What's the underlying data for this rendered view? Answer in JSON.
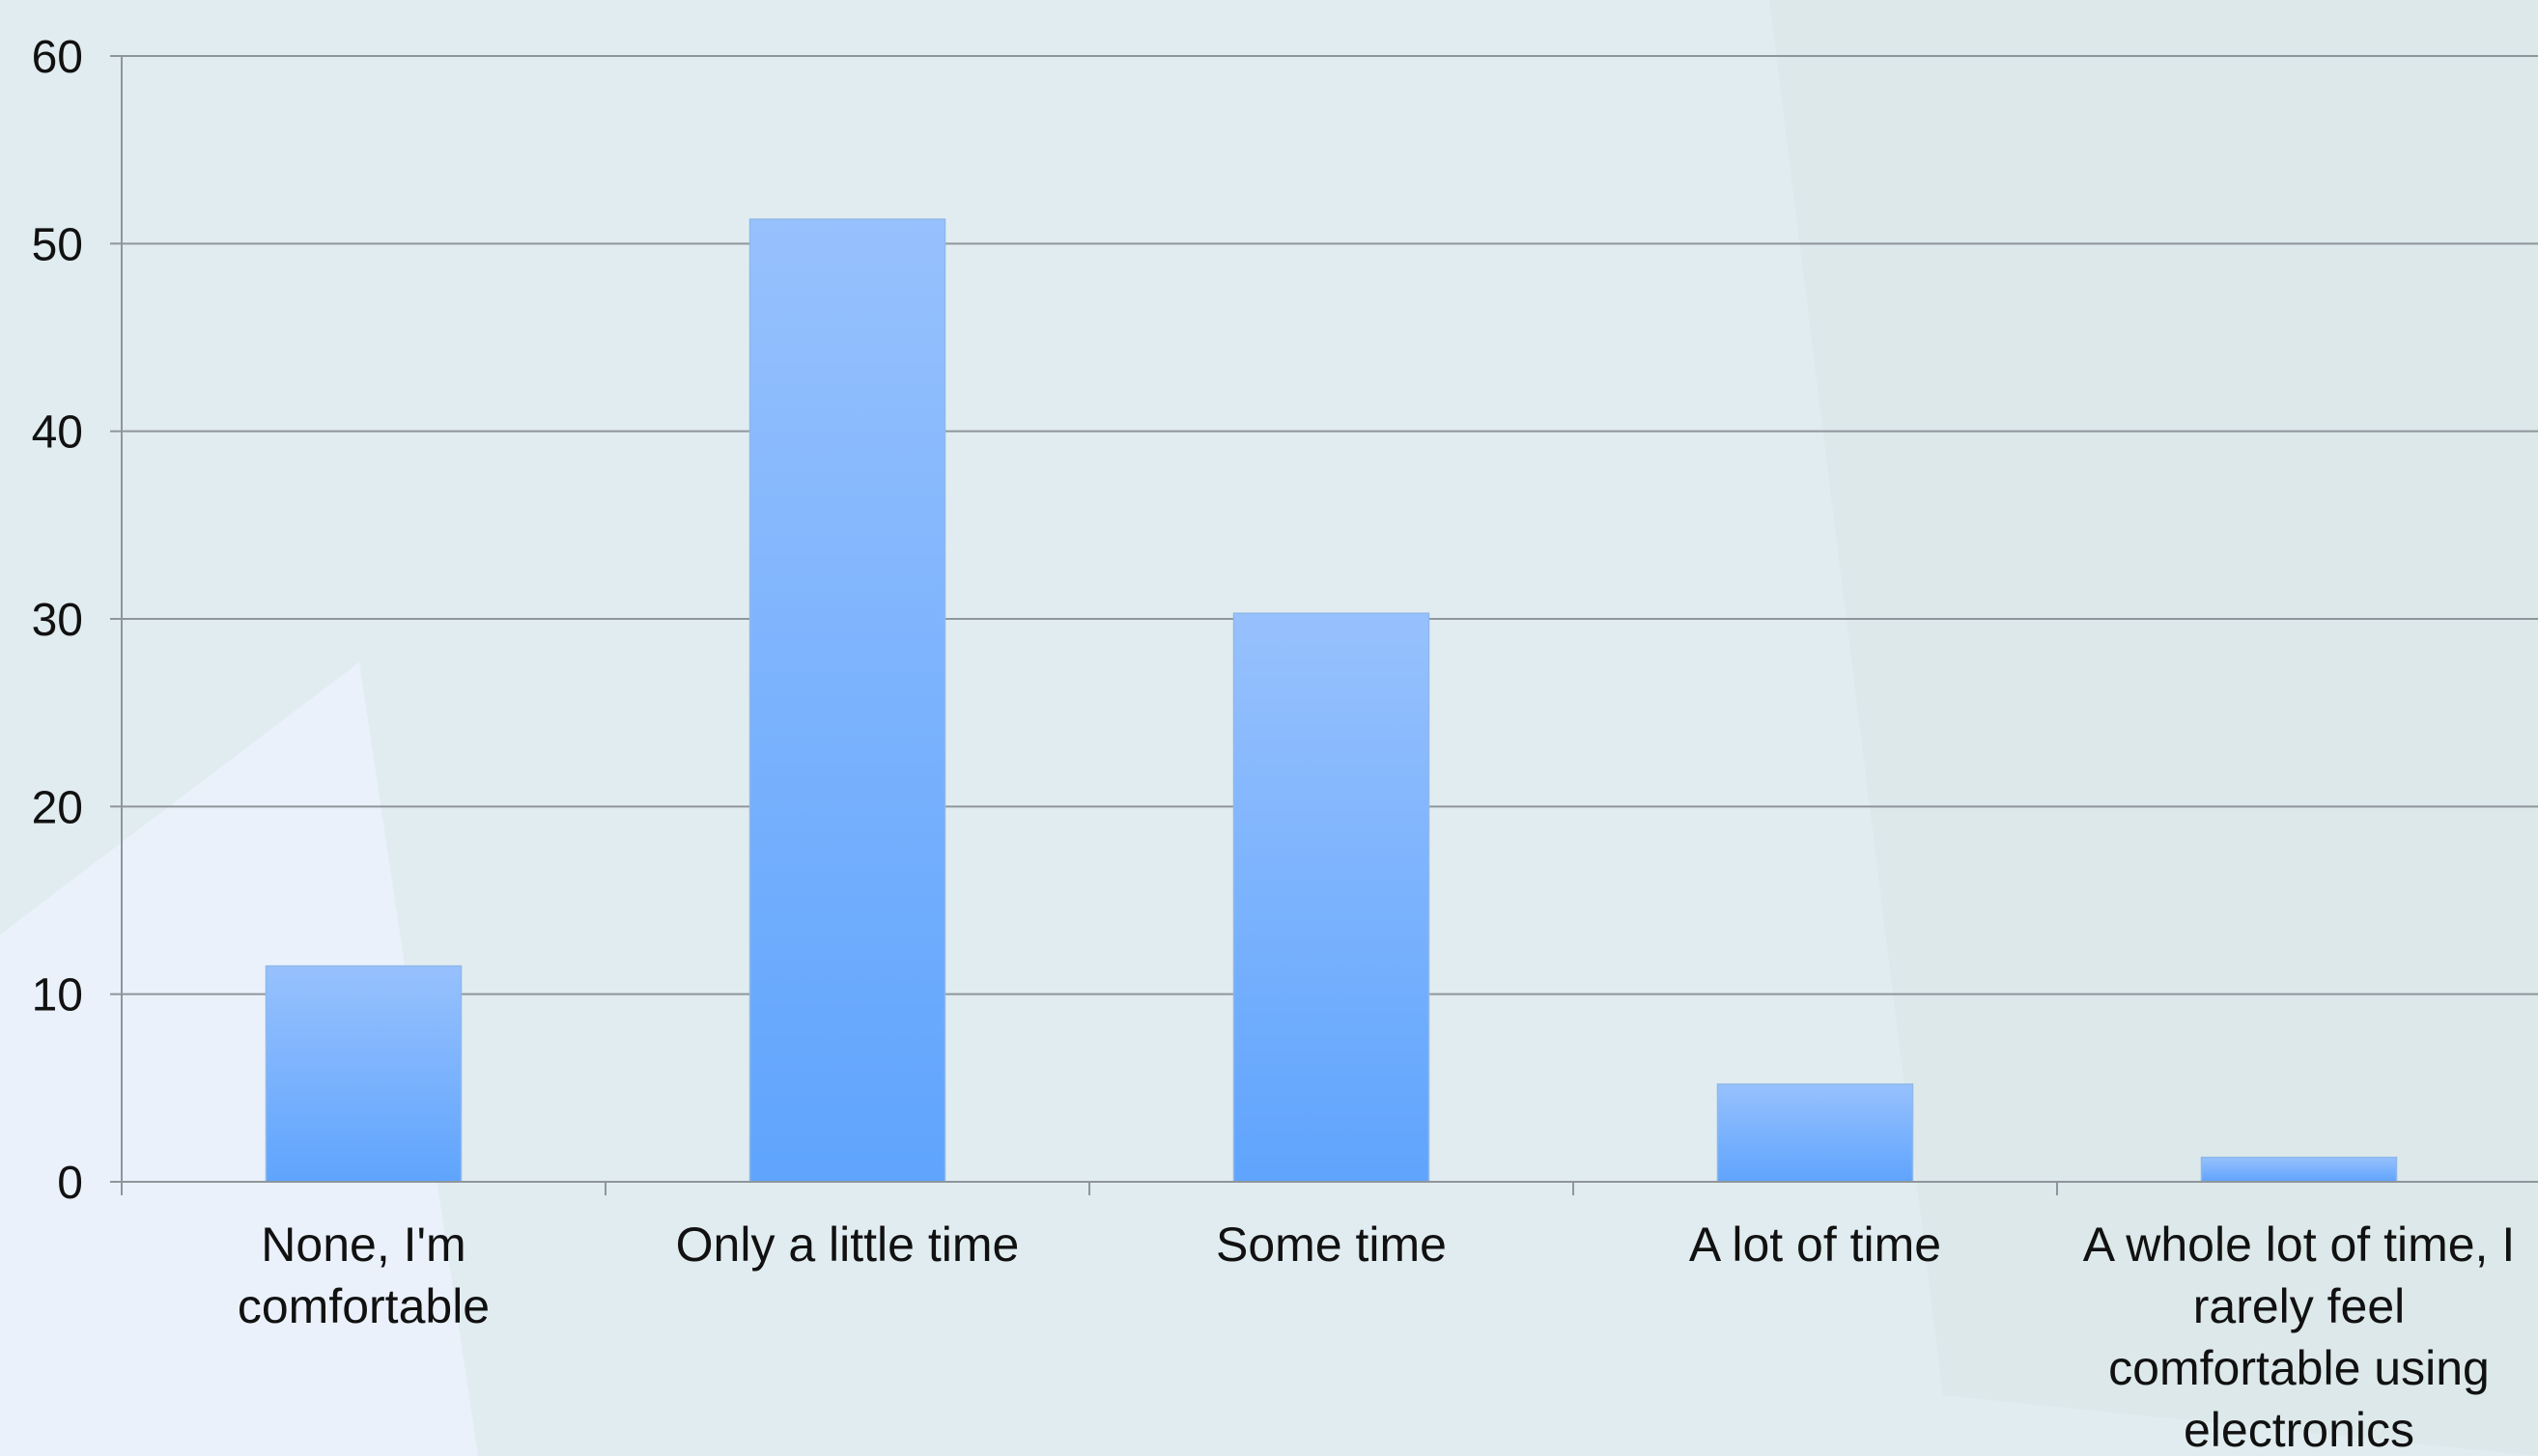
{
  "chart_data": {
    "type": "bar",
    "title": "",
    "xlabel": "",
    "ylabel": "",
    "ylim": [
      0,
      60
    ],
    "yticks": [
      0,
      10,
      20,
      30,
      40,
      50,
      60
    ],
    "grid": true,
    "legend": "none",
    "categories": [
      "None, I'm comfortable",
      "Only a little time",
      "Some time",
      "A lot of time",
      "A whole lot of time, I rarely feel comfortable using electronics"
    ],
    "values": [
      11.5,
      51.3,
      30.3,
      5.2,
      1.3
    ],
    "colors": {
      "bar_top": "#97c1fd",
      "bar_bottom": "#5fa4fd",
      "grid": "#8e969b",
      "background": "#e1ecf0"
    }
  }
}
